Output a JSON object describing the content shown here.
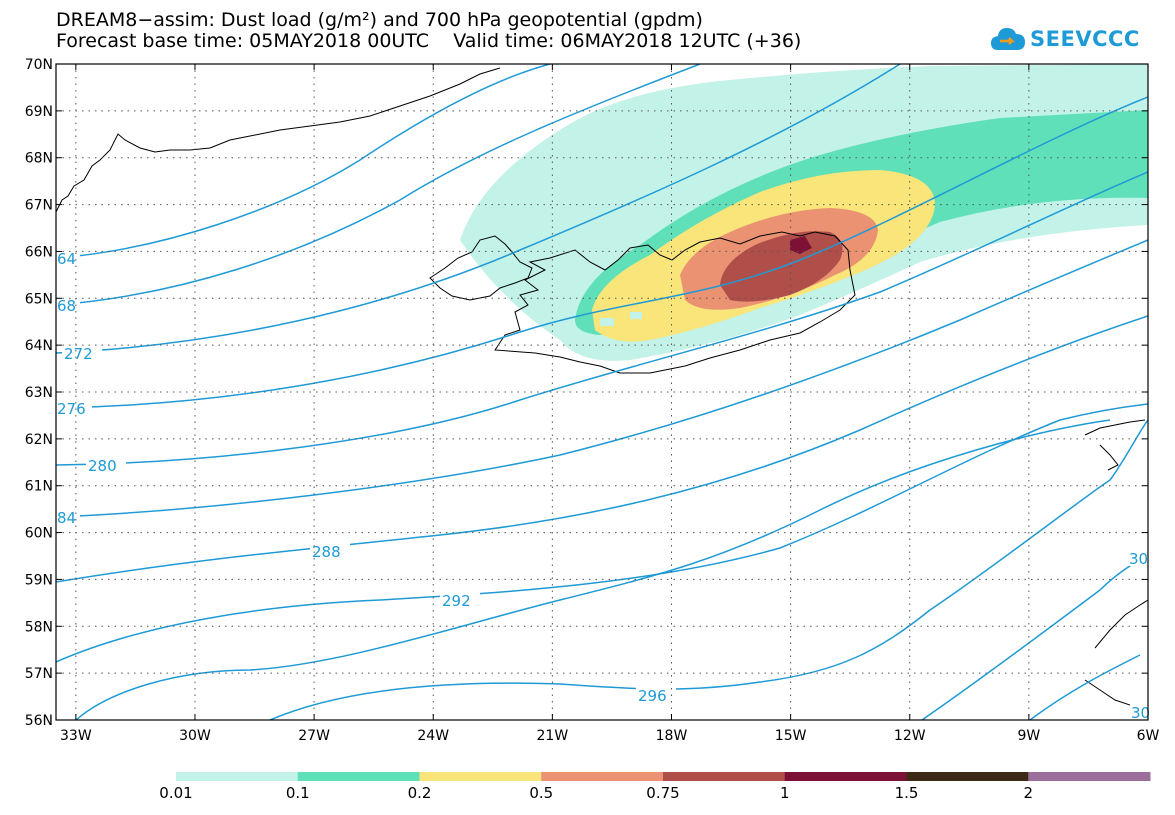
{
  "title": {
    "line1": "DREAM8−assim: Dust load (g/m²) and 700 hPa geopotential (gpdm)",
    "line2": "Forecast base time: 05MAY2018 00UTC    Valid time: 06MAY2018 12UTC (+36)"
  },
  "logo": {
    "text": "SEEVCCC",
    "icon": "cloud-icon",
    "color": "#1e9ad6"
  },
  "axes": {
    "lon_range": [
      -33.5,
      -6
    ],
    "lat_range": [
      56,
      70
    ],
    "lon_ticks": [
      "33W",
      "30W",
      "27W",
      "24W",
      "21W",
      "18W",
      "15W",
      "12W",
      "9W",
      "6W"
    ],
    "lat_ticks": [
      "56N",
      "57N",
      "58N",
      "59N",
      "60N",
      "61N",
      "62N",
      "63N",
      "64N",
      "65N",
      "66N",
      "67N",
      "68N",
      "69N",
      "70N"
    ],
    "grid": "dotted"
  },
  "contours": {
    "color": "#1e9ad6",
    "labels": [
      "64",
      "68",
      "272",
      "276",
      "280",
      "84",
      "288",
      "292",
      "296",
      "30",
      "30"
    ]
  },
  "colorbar": {
    "labels": [
      "0.01",
      "0.1",
      "0.2",
      "0.5",
      "0.75",
      "1",
      "1.5",
      "2"
    ],
    "colors": [
      "#c3f2e8",
      "#5fe0b8",
      "#f9e57a",
      "#ea9272",
      "#b04f4a",
      "#7d1135",
      "#3c2a17",
      "#9b6e9d"
    ]
  }
}
